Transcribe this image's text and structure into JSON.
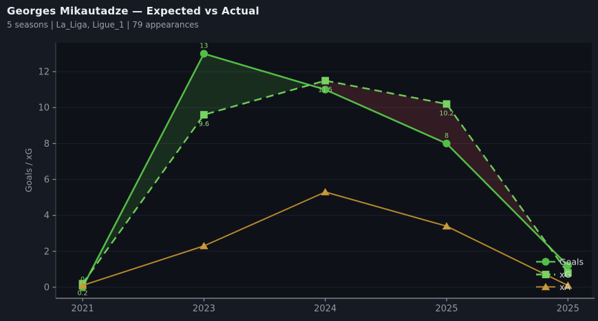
{
  "header": {
    "title": "Georges Mikautadze — Expected vs Actual",
    "subtitle": "5 seasons | La_Liga, Ligue_1 | 79 appearances"
  },
  "colors": {
    "figure_bg": "#161a23",
    "plot_bg": "#0e1118",
    "grid": "#1c212c",
    "spine_left": "#3f4450",
    "spine_bottom": "#8f95a0",
    "tick_label": "#9097a2",
    "axis_label": "#9097a2",
    "legend_text": "#d3d7dd",
    "fill_surplus": "rgba(90,190,70,0.16)",
    "fill_deficit": "rgba(195,70,75,0.20)"
  },
  "chart_data": {
    "type": "line",
    "title": "Georges Mikautadze — Expected vs Actual",
    "categories": [
      "2021",
      "2023",
      "2024",
      "2025",
      "2025"
    ],
    "xlabel": "",
    "ylabel": "Goals / xG",
    "yticks": [
      0,
      2,
      4,
      6,
      8,
      10,
      12
    ],
    "ylim": [
      -0.65,
      13.8
    ],
    "grid": true,
    "legend_position": "lower right",
    "fill_between": "Goals vs xG (green where Goals > xG, maroon where xG > Goals)",
    "series": [
      {
        "name": "Goals",
        "values": [
          0,
          13,
          11,
          8,
          1.2
        ],
        "labels": [
          "0",
          "13",
          "11",
          "8",
          ""
        ],
        "label_side": "above",
        "color": "#54bd47",
        "marker_color": "#54bd47",
        "label_color": "#84d170",
        "style": "solid",
        "marker": "circle",
        "width": 2.5
      },
      {
        "name": "xG",
        "values": [
          0.2,
          9.6,
          11.5,
          10.2,
          0.8
        ],
        "labels": [
          "0.2",
          "9.6",
          "11.5",
          "10.2",
          ""
        ],
        "label_side": "below",
        "color": "#6ecb5b",
        "marker_color": "#77d263",
        "label_color": "#93d683",
        "style": "dashed",
        "marker": "square",
        "width": 2.4
      },
      {
        "name": "xA",
        "values": [
          0.1,
          2.3,
          5.3,
          3.4,
          0.1
        ],
        "labels": [
          "",
          "",
          "",
          "",
          ""
        ],
        "label_side": "above",
        "color": "#b5872c",
        "marker_color": "#c89a3a",
        "label_color": "#c89a3a",
        "style": "solid",
        "marker": "triangle",
        "width": 2
      }
    ],
    "legend": [
      "Goals",
      "xG",
      "xA"
    ]
  }
}
